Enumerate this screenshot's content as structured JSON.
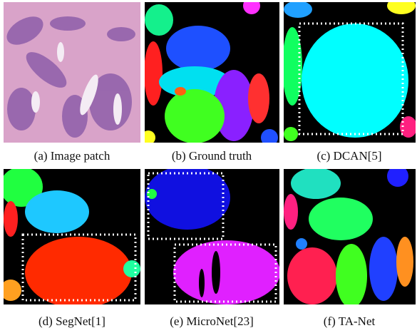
{
  "figure": {
    "captions": [
      "(a) Image patch",
      "(b) Ground truth",
      "(c) DCAN[5]",
      "(d) SegNet[1]",
      "(e) MicroNet[23]",
      "(f) TA-Net"
    ]
  }
}
